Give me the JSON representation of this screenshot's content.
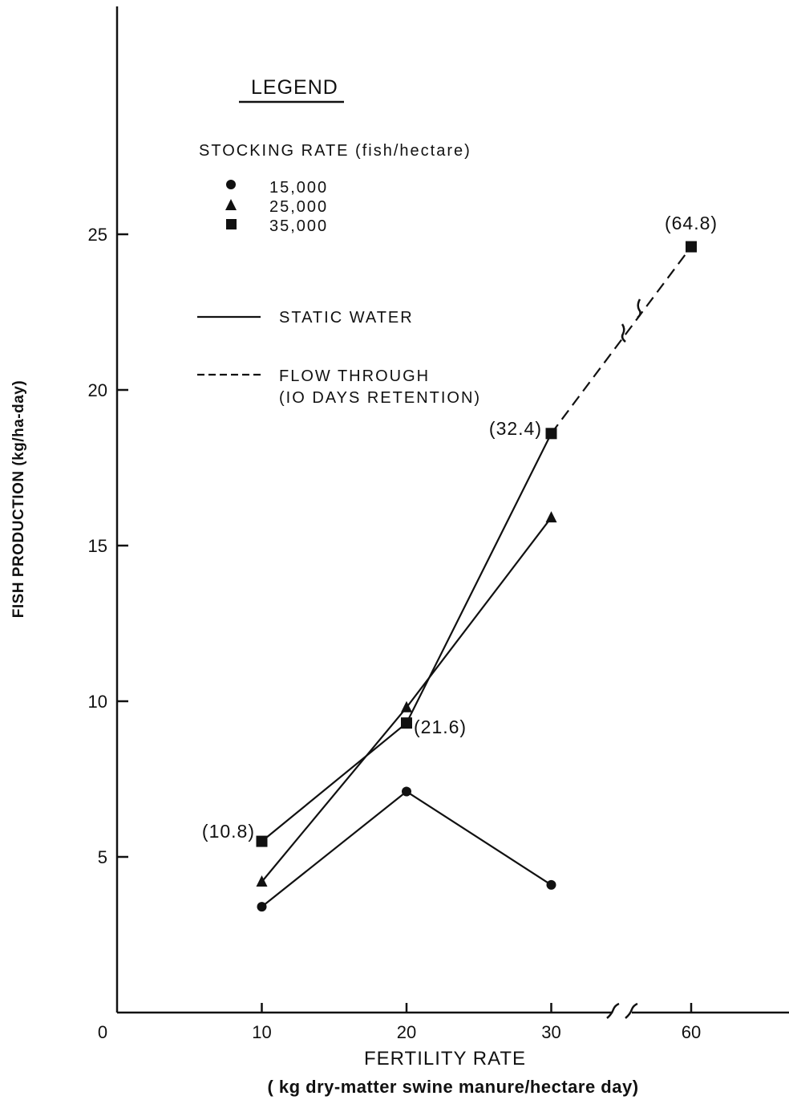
{
  "chart_data": {
    "type": "line",
    "x": [
      10,
      20,
      30,
      60
    ],
    "x_tick_labels": [
      "0",
      "10",
      "20",
      "30",
      "60"
    ],
    "y_tick_labels": [
      "5",
      "10",
      "15",
      "20",
      "25"
    ],
    "xlim": [
      0,
      60
    ],
    "ylim": [
      0,
      31
    ],
    "x_axis_break_between": [
      30,
      60
    ],
    "xlabel": "FERTILITY RATE",
    "xlabel_sub": "( kg dry-matter swine manure/hectare day)",
    "ylabel": "FISH PRODUCTION (kg/ha-day)",
    "grid": false,
    "legend": {
      "title": "LEGEND",
      "subtitle": "STOCKING RATE (fish/hectare)",
      "placement": "top-left",
      "marker_entries": [
        {
          "marker": "circle",
          "label": "15,000"
        },
        {
          "marker": "triangle",
          "label": "25,000"
        },
        {
          "marker": "square",
          "label": "35,000"
        }
      ],
      "line_entries": [
        {
          "style": "solid",
          "label": "STATIC WATER"
        },
        {
          "style": "dashed",
          "label_lines": [
            "FLOW THROUGH",
            "(IO DAYS RETENTION)"
          ]
        }
      ]
    },
    "series": [
      {
        "stocking": "15,000",
        "marker": "circle",
        "line": "solid",
        "x": [
          10,
          20,
          30
        ],
        "y": [
          3.4,
          7.1,
          4.1
        ]
      },
      {
        "stocking": "25,000",
        "marker": "triangle",
        "line": "solid",
        "x": [
          10,
          20,
          30
        ],
        "y": [
          4.2,
          9.8,
          15.9
        ]
      },
      {
        "stocking": "35,000",
        "marker": "square",
        "line": "solid",
        "x": [
          10,
          20,
          30
        ],
        "y": [
          5.5,
          9.3,
          18.6
        ]
      },
      {
        "stocking": "35,000",
        "marker": "square",
        "line": "dashed",
        "x": [
          30,
          60
        ],
        "y": [
          18.6,
          24.6
        ]
      }
    ],
    "annotations": [
      {
        "text": "(10.8)",
        "x": 10,
        "y": 5.5
      },
      {
        "text": "(21.6)",
        "x": 20,
        "y": 9.3
      },
      {
        "text": "(32.4)",
        "x": 30,
        "y": 18.6
      },
      {
        "text": "(64.8)",
        "x": 60,
        "y": 24.6
      }
    ]
  }
}
